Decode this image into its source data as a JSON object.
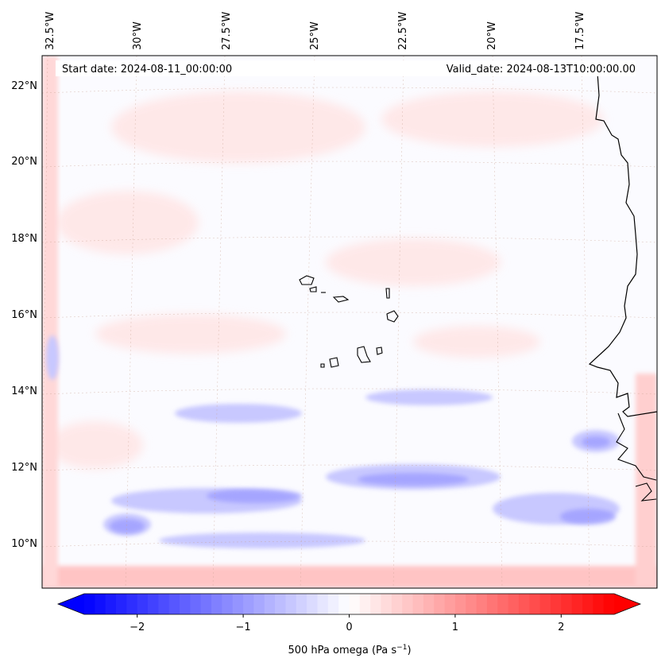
{
  "map": {
    "start_label": "Start date: 2024-08-11_00:00:00",
    "valid_label": "Valid_date: 2024-08-13T10:00:00.00",
    "lon_labels": [
      "32.5°W",
      "30°W",
      "27.5°W",
      "25°W",
      "22.5°W",
      "20°W",
      "17.5°W"
    ],
    "lat_labels": [
      "22°N",
      "20°N",
      "18°N",
      "16°N",
      "14°N",
      "12°N",
      "10°N"
    ],
    "extent": {
      "lon_min": -33.0,
      "lon_max": -15.5,
      "lat_min": 8.9,
      "lat_max": 22.8
    }
  },
  "colorbar": {
    "label_prefix": "500 hPa omega (Pa s",
    "label_sup": "−1",
    "label_suffix": ")",
    "ticks": [
      "−2",
      "−1",
      "0",
      "1",
      "2"
    ],
    "tick_values": [
      -2,
      -1,
      0,
      1,
      2
    ],
    "range": [
      -2.5,
      2.5
    ],
    "colors": {
      "negative": "#0000ff",
      "zero": "#ffffff",
      "positive": "#ff0000"
    }
  }
}
